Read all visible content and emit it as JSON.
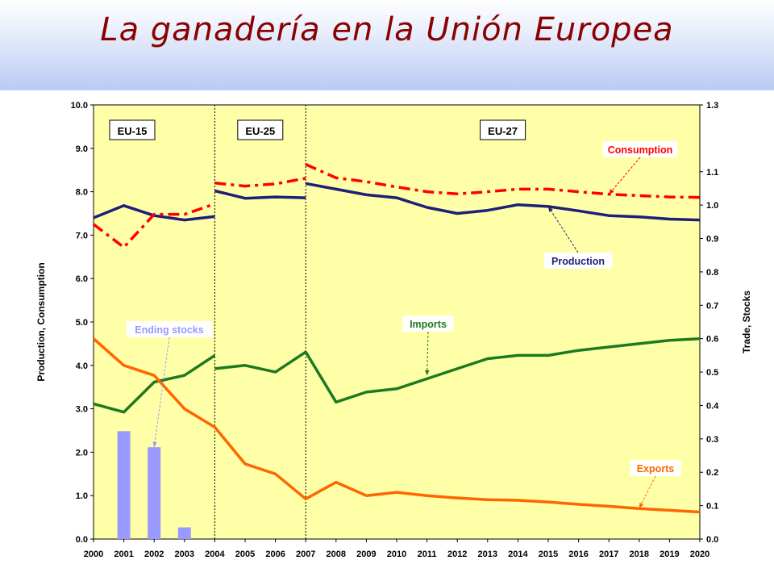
{
  "header": {
    "title": "La ganadería en la Unión Europea",
    "title_color": "#8B0000"
  },
  "chart_data": {
    "type": "line",
    "background_color": "#FFFFA8",
    "categories": [
      "2000",
      "2001",
      "2002",
      "2003",
      "2004",
      "2005",
      "2006",
      "2007",
      "2008",
      "2009",
      "2010",
      "2011",
      "2012",
      "2013",
      "2014",
      "2015",
      "2016",
      "2017",
      "2018",
      "2019",
      "2020"
    ],
    "y_left": {
      "label": "Production, Consumption",
      "range": [
        0,
        10
      ],
      "ticks": [
        "0.0",
        "1.0",
        "2.0",
        "3.0",
        "4.0",
        "5.0",
        "6.0",
        "7.0",
        "8.0",
        "9.0",
        "10.0"
      ]
    },
    "y_right": {
      "label": "Trade, Stocks",
      "range": [
        0,
        1.3
      ],
      "ticks": [
        "0.0",
        "0.1",
        "0.2",
        "0.3",
        "0.4",
        "0.5",
        "0.6",
        "0.7",
        "0.8",
        "0.9",
        "1.0",
        "1.1",
        "1.3"
      ]
    },
    "periods": [
      {
        "label": "EU-15",
        "start": "2000",
        "end": "2004"
      },
      {
        "label": "EU-25",
        "start": "2004",
        "end": "2007"
      },
      {
        "label": "EU-27",
        "start": "2007",
        "end": "2020"
      }
    ],
    "series": [
      {
        "name": "Production",
        "axis": "left",
        "color": "#1F1F7A",
        "style": "solid",
        "segments": [
          {
            "x": [
              "2000",
              "2001",
              "2002",
              "2003",
              "2004"
            ],
            "y": [
              7.4,
              7.68,
              7.45,
              7.35,
              7.43
            ]
          },
          {
            "x": [
              "2004",
              "2005",
              "2006",
              "2007"
            ],
            "y": [
              8.02,
              7.85,
              7.88,
              7.86
            ]
          },
          {
            "x": [
              "2007",
              "2008",
              "2009",
              "2010",
              "2011",
              "2012",
              "2013",
              "2014",
              "2015",
              "2016",
              "2017",
              "2018",
              "2019",
              "2020"
            ],
            "y": [
              8.19,
              8.06,
              7.93,
              7.86,
              7.64,
              7.5,
              7.57,
              7.7,
              7.66,
              7.56,
              7.45,
              7.42,
              7.37,
              7.35
            ]
          }
        ],
        "callout": {
          "label": "Production",
          "bg": "#FFFFFF",
          "text_color": "#1F1F7A",
          "target": [
            "2015",
            7.66
          ]
        }
      },
      {
        "name": "Consumption",
        "axis": "left",
        "color": "#FF0000",
        "style": "dashdot",
        "segments": [
          {
            "x": [
              "2000",
              "2001",
              "2002",
              "2003",
              "2004"
            ],
            "y": [
              7.25,
              6.72,
              7.48,
              7.48,
              7.72
            ]
          },
          {
            "x": [
              "2004",
              "2005",
              "2006",
              "2007"
            ],
            "y": [
              8.2,
              8.13,
              8.18,
              8.31
            ]
          },
          {
            "x": [
              "2007",
              "2008",
              "2009",
              "2010",
              "2011",
              "2012",
              "2013",
              "2014",
              "2015",
              "2016",
              "2017",
              "2018",
              "2019",
              "2020"
            ],
            "y": [
              8.63,
              8.32,
              8.23,
              8.11,
              8.0,
              7.95,
              8.0,
              8.06,
              8.06,
              8.0,
              7.94,
              7.91,
              7.88,
              7.87
            ]
          }
        ],
        "callout": {
          "label": "Consumption",
          "bg": "#FFFFFF",
          "text_color": "#FF0000",
          "target": [
            "2017",
            7.94
          ]
        }
      },
      {
        "name": "Imports",
        "axis": "right",
        "color": "#1E7A1E",
        "style": "solid",
        "segments": [
          {
            "x": [
              "2000",
              "2001",
              "2002",
              "2003",
              "2004"
            ],
            "y": [
              0.405,
              0.38,
              0.47,
              0.49,
              0.55
            ]
          },
          {
            "x": [
              "2004",
              "2005",
              "2006",
              "2007"
            ],
            "y": [
              0.51,
              0.52,
              0.5,
              0.56
            ]
          },
          {
            "x": [
              "2007",
              "2008",
              "2009",
              "2010",
              "2011",
              "2012",
              "2013",
              "2014",
              "2015",
              "2016",
              "2017",
              "2018",
              "2019",
              "2020"
            ],
            "y": [
              0.56,
              0.41,
              0.44,
              0.45,
              0.48,
              0.51,
              0.54,
              0.55,
              0.55,
              0.565,
              0.575,
              0.585,
              0.595,
              0.6
            ]
          }
        ],
        "callout": {
          "label": "Imports",
          "bg": "#FFFFFF",
          "text_color": "#1E7A1E",
          "target": [
            "2011",
            0.49
          ]
        }
      },
      {
        "name": "Exports",
        "axis": "right",
        "color": "#FF6600",
        "style": "solid",
        "segments": [
          {
            "x": [
              "2000",
              "2001",
              "2002",
              "2003",
              "2004",
              "2005",
              "2006",
              "2007",
              "2008",
              "2009",
              "2010",
              "2011",
              "2012",
              "2013",
              "2014",
              "2015",
              "2016",
              "2017",
              "2018",
              "2019",
              "2020"
            ],
            "y": [
              0.6,
              0.52,
              0.49,
              0.39,
              0.335,
              0.225,
              0.195,
              0.12,
              0.17,
              0.13,
              0.14,
              0.13,
              0.123,
              0.118,
              0.116,
              0.111,
              0.104,
              0.098,
              0.091,
              0.086,
              0.081
            ]
          }
        ],
        "callout": {
          "label": "Exports",
          "bg": "#FFFFFF",
          "text_color": "#FF6600",
          "target": [
            "2018",
            0.092
          ]
        }
      },
      {
        "name": "Ending stocks",
        "axis": "right",
        "type": "bar",
        "color": "#9999FF",
        "x": [
          "2001",
          "2002",
          "2003"
        ],
        "y": [
          0.323,
          0.275,
          0.035
        ],
        "callout": {
          "label": "Ending stocks",
          "bg": "#FFFFFF",
          "text_color": "#9999FF",
          "target": [
            "2002",
            0.275
          ]
        }
      }
    ]
  }
}
